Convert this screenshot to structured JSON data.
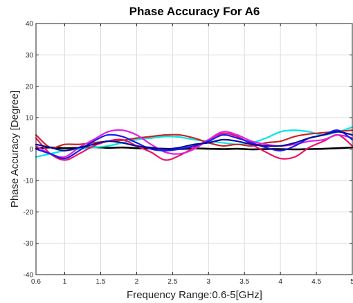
{
  "chart_data": {
    "type": "line",
    "title": "Phase Accuracy For A6",
    "xlabel": "Frequency Range:0.6-5[GHz]",
    "ylabel": "Phase Accuracy [Degree]",
    "xlim": [
      0.6,
      5
    ],
    "ylim": [
      -40,
      40
    ],
    "xticks": [
      0.6,
      1,
      1.5,
      2,
      2.5,
      3,
      3.5,
      4,
      4.5,
      5
    ],
    "xtick_labels": [
      "0.6",
      "1",
      "1.5",
      "2",
      "2.5",
      "3",
      "3.5",
      "4",
      "4.5",
      "5"
    ],
    "yticks": [
      -40,
      -30,
      -20,
      -10,
      0,
      10,
      20,
      30,
      40
    ],
    "ytick_labels": [
      "-40",
      "-30",
      "-20",
      "-10",
      "0",
      "10",
      "20",
      "30",
      "40"
    ],
    "grid": true,
    "legend": "none",
    "series": [
      {
        "color": "#000000",
        "x": [
          0.6,
          0.8,
          1.0,
          1.2,
          1.4,
          1.6,
          1.8,
          2.0,
          2.2,
          2.4,
          2.6,
          2.8,
          3.0,
          3.2,
          3.4,
          3.6,
          3.8,
          4.0,
          4.2,
          4.4,
          4.6,
          4.8,
          5.0
        ],
        "y": [
          0.2,
          0.5,
          0.3,
          0.4,
          0.6,
          0.4,
          0.5,
          0.3,
          0.2,
          0.1,
          0.0,
          0.2,
          0.1,
          0.0,
          0.1,
          -0.1,
          0.0,
          0.0,
          -0.1,
          0.0,
          0.1,
          0.3,
          0.5
        ]
      },
      {
        "color": "#00e5e5",
        "x": [
          0.6,
          0.8,
          1.0,
          1.2,
          1.4,
          1.6,
          1.8,
          2.0,
          2.2,
          2.4,
          2.6,
          2.8,
          3.0,
          3.2,
          3.4,
          3.6,
          3.8,
          4.0,
          4.2,
          4.4,
          4.6,
          4.8,
          5.0
        ],
        "y": [
          -2.5,
          -1.5,
          -0.5,
          0.0,
          0.5,
          1.0,
          2.0,
          3.0,
          3.5,
          4.0,
          3.8,
          3.0,
          2.5,
          2.0,
          1.5,
          2.0,
          3.5,
          5.5,
          6.0,
          5.5,
          4.5,
          5.5,
          7.0
        ]
      },
      {
        "color": "#cc2222",
        "x": [
          0.6,
          0.8,
          1.0,
          1.2,
          1.4,
          1.6,
          1.8,
          2.0,
          2.2,
          2.4,
          2.6,
          2.8,
          3.0,
          3.2,
          3.4,
          3.6,
          3.8,
          4.0,
          4.2,
          4.4,
          4.6,
          4.8,
          5.0
        ],
        "y": [
          4.5,
          0.5,
          1.5,
          1.5,
          2.0,
          2.5,
          2.8,
          3.5,
          4.0,
          4.5,
          4.5,
          3.5,
          2.0,
          1.0,
          1.5,
          1.0,
          2.0,
          2.5,
          4.0,
          4.8,
          5.2,
          5.6,
          6.0
        ]
      },
      {
        "color": "#ee1166",
        "x": [
          0.6,
          0.8,
          1.0,
          1.2,
          1.4,
          1.6,
          1.8,
          2.0,
          2.2,
          2.4,
          2.6,
          2.8,
          3.0,
          3.2,
          3.4,
          3.6,
          3.8,
          4.0,
          4.2,
          4.4,
          4.6,
          4.8,
          5.0
        ],
        "y": [
          3.5,
          -1.5,
          -3.5,
          -1.5,
          1.0,
          2.5,
          3.0,
          1.0,
          -1.0,
          -3.5,
          -2.0,
          0.5,
          3.0,
          5.0,
          4.0,
          1.5,
          -1.0,
          -3.0,
          -2.5,
          0.5,
          2.5,
          4.5,
          1.0
        ]
      },
      {
        "color": "#dd22dd",
        "x": [
          0.6,
          0.8,
          1.0,
          1.2,
          1.4,
          1.6,
          1.8,
          2.0,
          2.2,
          2.4,
          2.6,
          2.8,
          3.0,
          3.2,
          3.4,
          3.6,
          3.8,
          4.0,
          4.2,
          4.4,
          4.6,
          4.8,
          5.0
        ],
        "y": [
          1.0,
          -1.5,
          -2.5,
          0.5,
          3.0,
          5.5,
          6.0,
          4.5,
          1.5,
          -1.0,
          -1.5,
          0.0,
          3.0,
          5.5,
          4.5,
          2.5,
          1.5,
          1.0,
          1.5,
          2.5,
          3.0,
          4.5,
          3.5
        ]
      },
      {
        "color": "#1a1aee",
        "x": [
          0.6,
          0.8,
          1.0,
          1.2,
          1.4,
          1.6,
          1.8,
          2.0,
          2.2,
          2.4,
          2.6,
          2.8,
          3.0,
          3.2,
          3.4,
          3.6,
          3.8,
          4.0,
          4.2,
          4.4,
          4.6,
          4.8,
          5.0
        ],
        "y": [
          0.0,
          -1.5,
          -3.0,
          -0.5,
          2.5,
          4.5,
          4.0,
          2.0,
          0.0,
          -0.5,
          0.0,
          1.0,
          2.5,
          4.5,
          3.5,
          2.0,
          0.5,
          -0.5,
          1.0,
          3.5,
          4.5,
          6.0,
          3.0
        ]
      },
      {
        "color": "#0a0a99",
        "x": [
          0.6,
          0.8,
          1.0,
          1.2,
          1.4,
          1.6,
          1.8,
          2.0,
          2.2,
          2.4,
          2.6,
          2.8,
          3.0,
          3.2,
          3.4,
          3.6,
          3.8,
          4.0,
          4.2,
          4.4,
          4.6,
          4.8,
          5.0
        ],
        "y": [
          1.5,
          0.5,
          -0.5,
          0.5,
          1.5,
          2.5,
          2.0,
          1.0,
          0.5,
          0.0,
          0.5,
          1.5,
          2.0,
          3.0,
          2.5,
          1.5,
          1.0,
          1.0,
          2.0,
          3.5,
          4.5,
          5.5,
          4.5
        ]
      }
    ]
  }
}
